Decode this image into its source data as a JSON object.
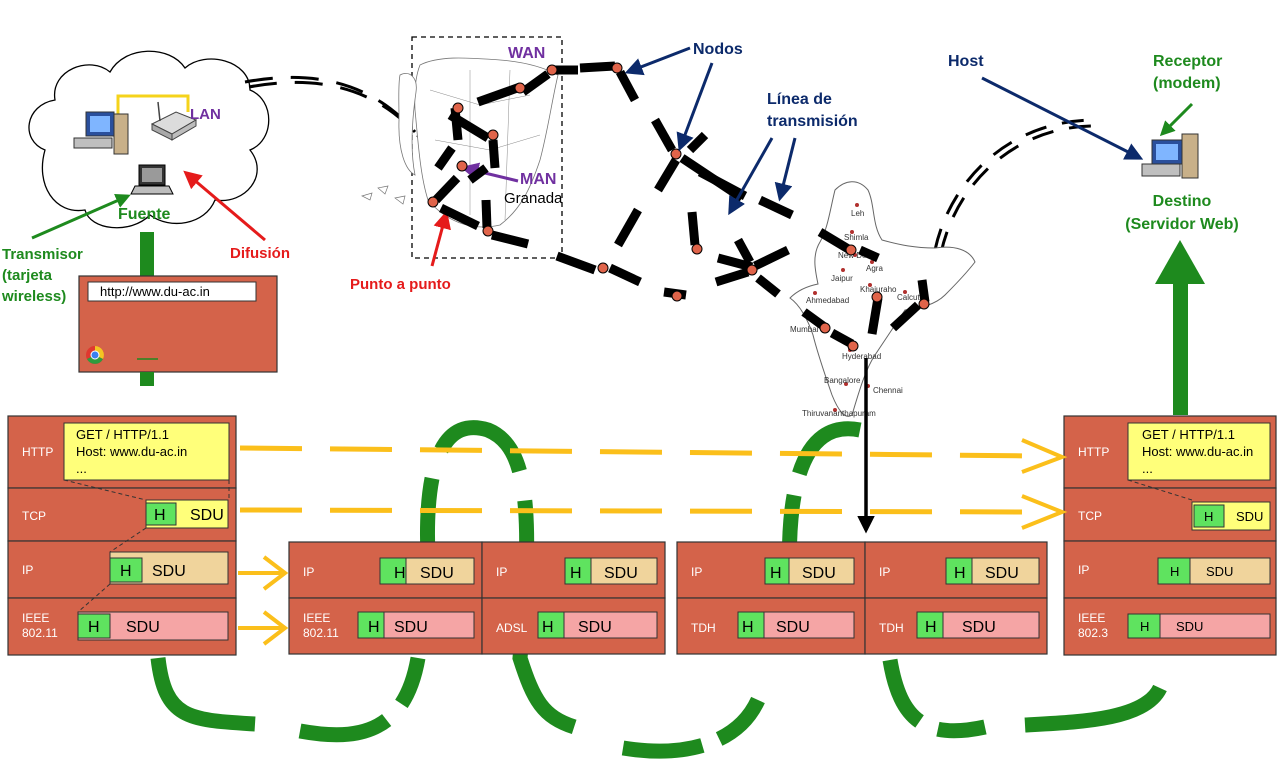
{
  "colors": {
    "protocol_box": "#d4634a",
    "header": "#5fe35f",
    "sdu_ip": "#f0d49c",
    "sdu_link": "#f5a5a5",
    "note": "#ffff7a",
    "flow_green": "#1e8a1e",
    "arrow_yellow": "#fbbf1b",
    "label_green": "#1e8a1e",
    "label_red": "#e51b1b",
    "label_purple": "#7030a0",
    "label_navy": "#0c2a6b"
  },
  "icons": [
    "cloud-icon",
    "desktop-computer-icon",
    "wireless-router-icon",
    "laptop-icon",
    "browser-icon",
    "spain-map-icon",
    "india-map-icon",
    "server-computer-icon"
  ],
  "labels": {
    "lan": "LAN",
    "fuente": "Fuente",
    "transmisor": [
      "Transmisor",
      "(tarjeta",
      "wireless)"
    ],
    "difusion": "Difusión",
    "wan": "WAN",
    "man": "MAN",
    "granada": "Granada",
    "punto_a_punto": "Punto a punto",
    "nodos": "Nodos",
    "linea": [
      "Línea de",
      "transmisión"
    ],
    "host": "Host",
    "receptor": [
      "Receptor",
      "(modem)"
    ],
    "destino": [
      "Destino",
      "(Servidor Web)"
    ]
  },
  "browser": {
    "url": "http://www.du-ac.in"
  },
  "india_cities": [
    "Leh",
    "Shimla",
    "New Delhi",
    "Agra",
    "Jaipur",
    "Ahmedabad",
    "Khajuraho",
    "Calcutta",
    "Mumbai",
    "Hyderabad",
    "Bangalore",
    "Chennai",
    "Thiruvananthapuram"
  ],
  "stack_source": {
    "layers": [
      "HTTP",
      "TCP",
      "IP",
      "IEEE\n802.11"
    ],
    "http_note": [
      "GET / HTTP/1.1",
      "Host: www.du-ac.in",
      "..."
    ]
  },
  "router_1": {
    "layers": [
      "IP",
      "IEEE\n802.11"
    ]
  },
  "router_2": {
    "layers": [
      "IP",
      "ADSL"
    ]
  },
  "router_3": {
    "layers": [
      "IP",
      "TDH"
    ]
  },
  "router_4": {
    "layers": [
      "IP",
      "TDH"
    ]
  },
  "stack_destination": {
    "layers": [
      "HTTP",
      "TCP",
      "IP",
      "IEEE\n802.3"
    ],
    "http_note": [
      "GET / HTTP/1.1",
      "Host: www.du-ac.in",
      "..."
    ]
  },
  "pdu": {
    "header": "H",
    "sdu": "SDU"
  }
}
